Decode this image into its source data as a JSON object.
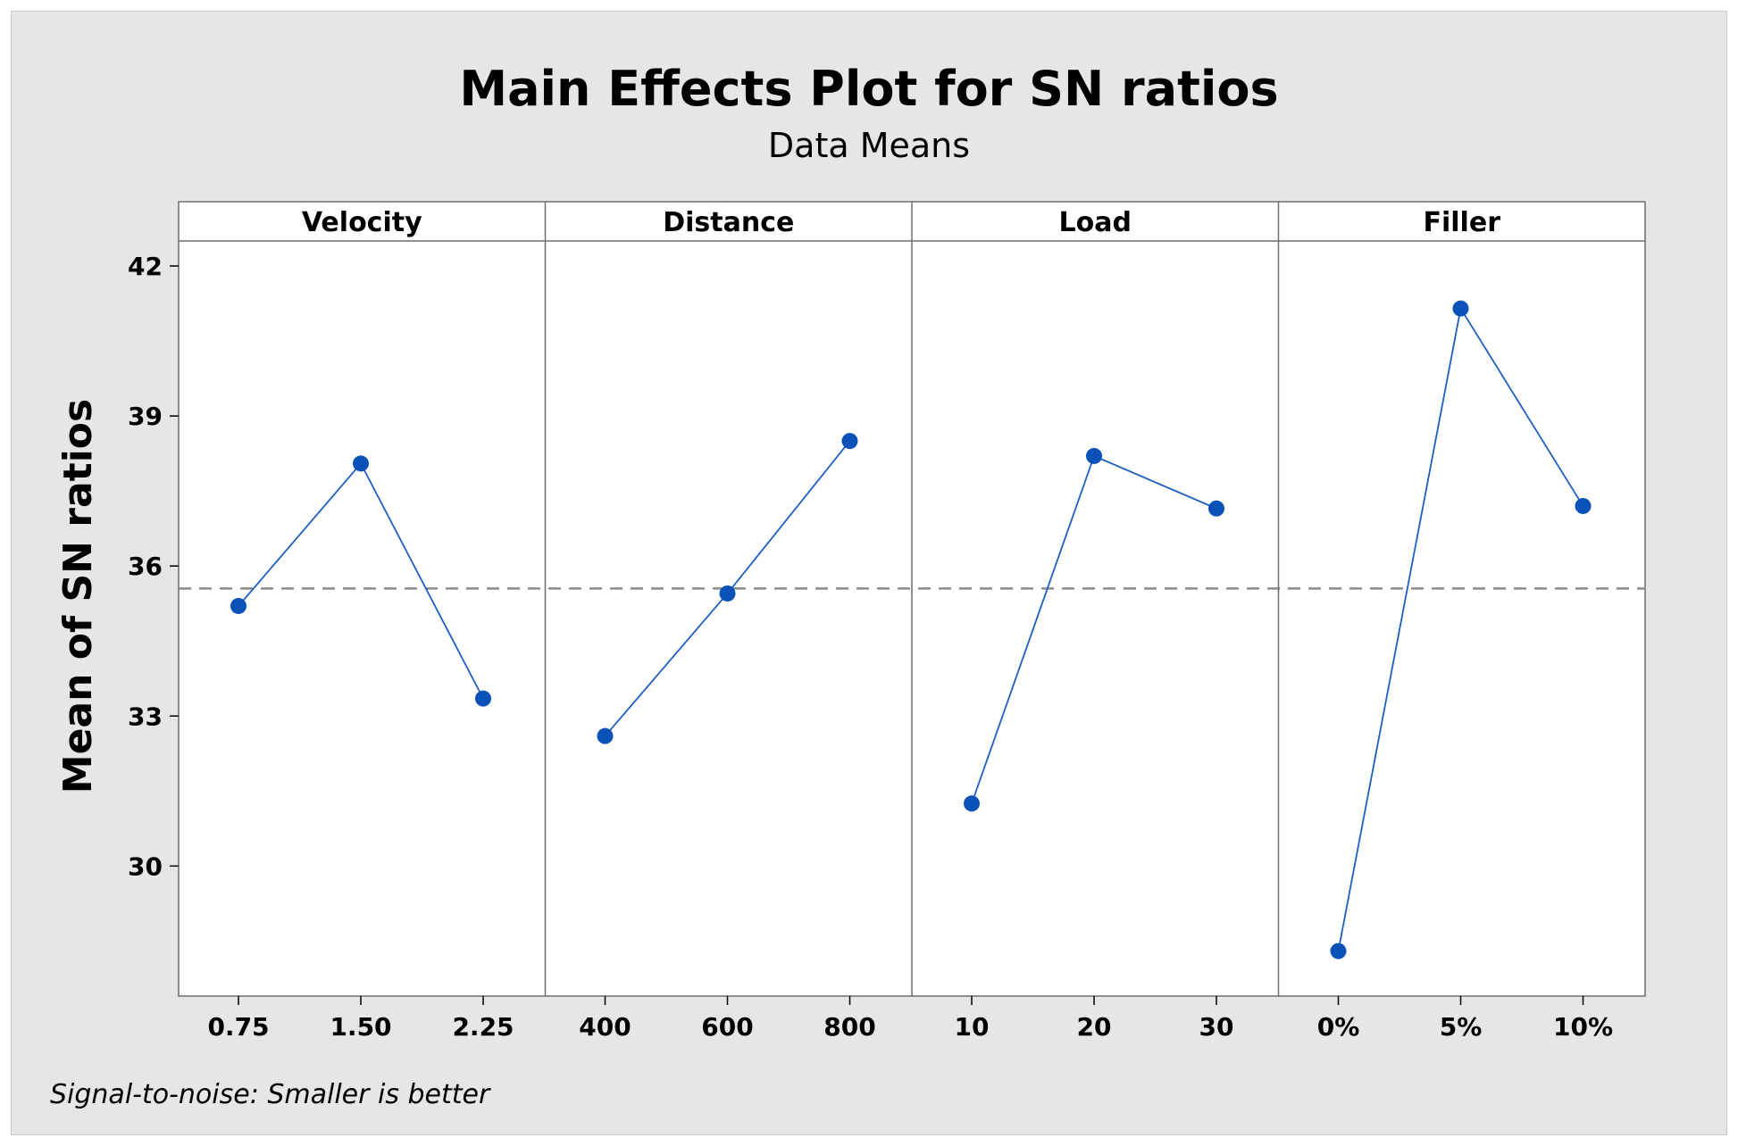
{
  "chart_data": {
    "type": "line",
    "title": "Main Effects Plot for SN ratios",
    "subtitle": "Data Means",
    "ylabel": "Mean of SN ratios",
    "footnote": "Signal-to-noise: Smaller is better",
    "ylim": [
      27.4,
      42.5
    ],
    "yticks": [
      30,
      33,
      36,
      39,
      42
    ],
    "yticks_labels": [
      "30",
      "33",
      "36",
      "39",
      "42"
    ],
    "reference_line": 35.55,
    "colors": {
      "line": "#1f5fbf",
      "marker": "#0a52b8",
      "reference": "#8c8c8c",
      "background": "#e6e6e6"
    },
    "panels": [
      {
        "name": "Velocity",
        "categories": [
          "0.75",
          "1.50",
          "2.25"
        ],
        "values": [
          35.2,
          38.05,
          33.35
        ]
      },
      {
        "name": "Distance",
        "categories": [
          "400",
          "600",
          "800"
        ],
        "values": [
          32.6,
          35.45,
          38.5
        ]
      },
      {
        "name": "Load",
        "categories": [
          "10",
          "20",
          "30"
        ],
        "values": [
          31.25,
          38.2,
          37.15
        ]
      },
      {
        "name": "Filler",
        "categories": [
          "0%",
          "5%",
          "10%"
        ],
        "values": [
          28.3,
          41.15,
          37.2
        ]
      }
    ]
  }
}
